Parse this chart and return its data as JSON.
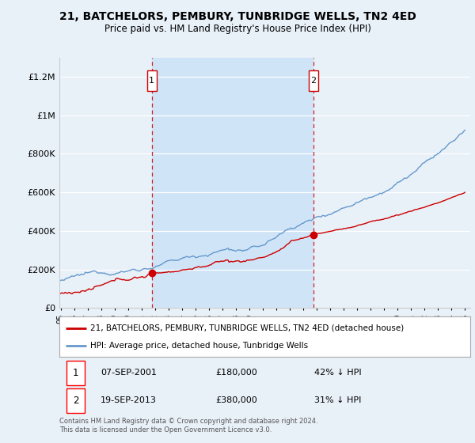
{
  "title": "21, BATCHELORS, PEMBURY, TUNBRIDGE WELLS, TN2 4ED",
  "subtitle": "Price paid vs. HM Land Registry's House Price Index (HPI)",
  "bg_color": "#e8f0f8",
  "plot_bg_color": "#e8f0f8",
  "highlight_color": "#d0e4f7",
  "sale1_year": 2001.75,
  "sale1_price": 180000,
  "sale2_year": 2013.75,
  "sale2_price": 380000,
  "hpi_color": "#6699cc",
  "sold_color": "#cc0000",
  "dashed_color": "#cc0000",
  "ylim_max": 1300000,
  "yticks": [
    0,
    200000,
    400000,
    600000,
    800000,
    1000000,
    1200000
  ],
  "legend_entry1": "21, BATCHELORS, PEMBURY, TUNBRIDGE WELLS, TN2 4ED (detached house)",
  "legend_entry2": "HPI: Average price, detached house, Tunbridge Wells",
  "footer1": "Contains HM Land Registry data © Crown copyright and database right 2024.",
  "footer2": "This data is licensed under the Open Government Licence v3.0.",
  "table_row1_date": "07-SEP-2001",
  "table_row1_price": "£180,000",
  "table_row1_pct": "42% ↓ HPI",
  "table_row2_date": "19-SEP-2013",
  "table_row2_price": "£380,000",
  "table_row2_pct": "31% ↓ HPI"
}
